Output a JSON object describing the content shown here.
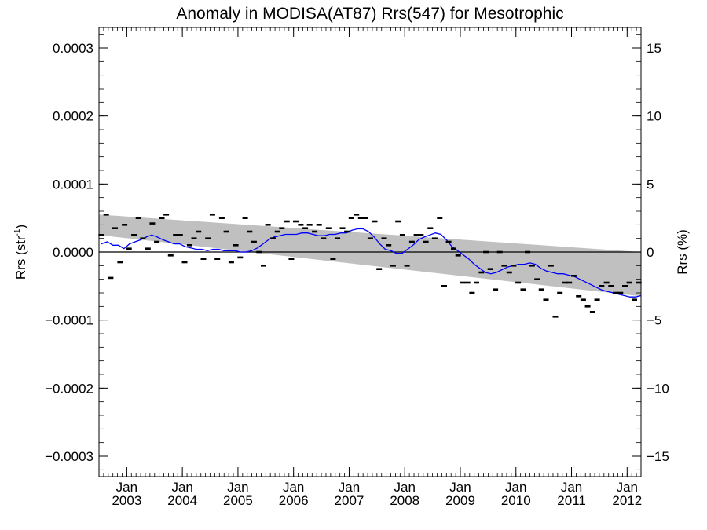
{
  "chart_data": {
    "type": "scatter",
    "title": "Anomaly in MODISA(AT87) Rrs(547) for Mesotrophic",
    "ylabel": "Rrs (str",
    "ylabel_sup": "-1",
    "ylabel_tail": ")",
    "y2label": "Rrs (%)",
    "xlim": [
      2002.5,
      2012.25
    ],
    "ylim": [
      -0.00033,
      0.00033
    ],
    "y2lim": [
      -16.5,
      16.5
    ],
    "grid": false,
    "y_ticks": [
      {
        "value": 0.0003,
        "label": "0.0003"
      },
      {
        "value": 0.0002,
        "label": "0.0002"
      },
      {
        "value": 0.0001,
        "label": "0.0001"
      },
      {
        "value": 0.0,
        "label": "0.0000"
      },
      {
        "value": -0.0001,
        "label": "−0.0001"
      },
      {
        "value": -0.0002,
        "label": "−0.0002"
      },
      {
        "value": -0.0003,
        "label": "−0.0003"
      }
    ],
    "y2_ticks": [
      {
        "value": 15,
        "label": "15"
      },
      {
        "value": 10,
        "label": "10"
      },
      {
        "value": 5,
        "label": "5"
      },
      {
        "value": 0,
        "label": "0"
      },
      {
        "value": -5,
        "label": "−5"
      },
      {
        "value": -10,
        "label": "−10"
      },
      {
        "value": -15,
        "label": "−15"
      }
    ],
    "x_ticks": [
      {
        "value": 2003.0,
        "label_top": "Jan",
        "label_bottom": "2003"
      },
      {
        "value": 2004.0,
        "label_top": "Jan",
        "label_bottom": "2004"
      },
      {
        "value": 2005.0,
        "label_top": "Jan",
        "label_bottom": "2005"
      },
      {
        "value": 2006.0,
        "label_top": "Jan",
        "label_bottom": "2006"
      },
      {
        "value": 2007.0,
        "label_top": "Jan",
        "label_bottom": "2007"
      },
      {
        "value": 2008.0,
        "label_top": "Jan",
        "label_bottom": "2008"
      },
      {
        "value": 2009.0,
        "label_top": "Jan",
        "label_bottom": "2009"
      },
      {
        "value": 2010.0,
        "label_top": "Jan",
        "label_bottom": "2010"
      },
      {
        "value": 2011.0,
        "label_top": "Jan",
        "label_bottom": "2011"
      },
      {
        "value": 2012.0,
        "label_top": "Jan",
        "label_bottom": "2012"
      }
    ],
    "band": {
      "start": {
        "x": 2002.5,
        "upper": 5.5e-05,
        "lower": 2.5e-05
      },
      "end": {
        "x": 2012.25,
        "upper": 0.0,
        "lower": -6.5e-05
      },
      "color": "#c0c0c0"
    },
    "zero_line": 0.0,
    "colors": {
      "points": "#000000",
      "trend": "#0000ff",
      "band": "#c0c0c0"
    },
    "points": {
      "x": [
        2002.54,
        2002.63,
        2002.71,
        2002.79,
        2002.88,
        2002.96,
        2003.04,
        2003.13,
        2003.21,
        2003.29,
        2003.38,
        2003.46,
        2003.54,
        2003.63,
        2003.71,
        2003.79,
        2003.88,
        2003.96,
        2004.04,
        2004.13,
        2004.21,
        2004.29,
        2004.38,
        2004.46,
        2004.54,
        2004.63,
        2004.71,
        2004.79,
        2004.88,
        2004.96,
        2005.04,
        2005.13,
        2005.21,
        2005.29,
        2005.38,
        2005.46,
        2005.54,
        2005.63,
        2005.71,
        2005.79,
        2005.88,
        2005.96,
        2006.04,
        2006.13,
        2006.21,
        2006.29,
        2006.38,
        2006.46,
        2006.54,
        2006.63,
        2006.71,
        2006.79,
        2006.88,
        2006.96,
        2007.04,
        2007.13,
        2007.21,
        2007.29,
        2007.38,
        2007.46,
        2007.54,
        2007.63,
        2007.71,
        2007.79,
        2007.88,
        2007.96,
        2008.04,
        2008.13,
        2008.21,
        2008.29,
        2008.38,
        2008.46,
        2008.54,
        2008.63,
        2008.71,
        2008.79,
        2008.88,
        2008.96,
        2009.04,
        2009.13,
        2009.21,
        2009.29,
        2009.38,
        2009.46,
        2009.54,
        2009.63,
        2009.71,
        2009.79,
        2009.88,
        2009.96,
        2010.04,
        2010.13,
        2010.21,
        2010.29,
        2010.38,
        2010.46,
        2010.54,
        2010.63,
        2010.71,
        2010.79,
        2010.88,
        2010.96,
        2011.04,
        2011.13,
        2011.21,
        2011.29,
        2011.38,
        2011.46,
        2011.54,
        2011.63,
        2011.71,
        2011.79,
        2011.88,
        2011.96,
        2012.04,
        2012.13,
        2012.21
      ],
      "y": [
        2.5e-05,
        5.5e-05,
        -3.8e-05,
        3.5e-05,
        -1.5e-05,
        4e-05,
        5e-06,
        2.5e-05,
        5e-05,
        2e-05,
        5e-06,
        4.2e-05,
        1.5e-05,
        5e-05,
        5.5e-05,
        -5e-06,
        2.5e-05,
        2.5e-05,
        -1.5e-05,
        1e-05,
        2e-05,
        3e-05,
        -1e-05,
        2e-05,
        5.5e-05,
        -1e-05,
        5e-05,
        3e-05,
        -1.5e-05,
        1e-05,
        -8e-06,
        5e-05,
        3e-05,
        1.5e-05,
        0.0,
        -2e-05,
        4e-05,
        2e-05,
        3e-05,
        3.5e-05,
        4.5e-05,
        -1e-05,
        4.5e-05,
        4e-05,
        3.5e-05,
        4e-05,
        3e-05,
        4e-05,
        2e-05,
        3.5e-05,
        -1e-05,
        2e-05,
        3.5e-05,
        3e-05,
        5e-05,
        5.5e-05,
        5e-05,
        5e-05,
        2e-05,
        4.5e-05,
        -2.5e-05,
        2e-05,
        1e-05,
        -2e-05,
        4.5e-05,
        2.5e-05,
        -2e-05,
        1.5e-05,
        2.5e-05,
        2.5e-05,
        1.5e-05,
        3.5e-05,
        2e-05,
        5e-05,
        -5e-05,
        1.5e-05,
        5e-06,
        -5e-06,
        -4.5e-05,
        -4.5e-05,
        -6e-05,
        -4.5e-05,
        -3e-05,
        0.0,
        -2.5e-05,
        -5.5e-05,
        0.0,
        -2e-05,
        -3e-05,
        -2e-05,
        -4.5e-05,
        -5.5e-05,
        0.0,
        -2e-05,
        -4e-05,
        -5.5e-05,
        -7e-05,
        -2e-05,
        -9.5e-05,
        -6e-05,
        -4.5e-05,
        -4.5e-05,
        -3.5e-05,
        -6.5e-05,
        -7e-05,
        -8e-05,
        -8.8e-05,
        -7e-05,
        -5e-05,
        -4.5e-05,
        -5e-05,
        -6e-05,
        -6e-05,
        -5e-05,
        -4.5e-05,
        -7e-05,
        -4.5e-05
      ]
    },
    "trend": {
      "x": [
        2002.54,
        2002.65,
        2002.75,
        2002.85,
        2002.95,
        2003.05,
        2003.15,
        2003.25,
        2003.35,
        2003.45,
        2003.55,
        2003.65,
        2003.75,
        2003.85,
        2003.95,
        2004.05,
        2004.15,
        2004.25,
        2004.35,
        2004.45,
        2004.55,
        2004.65,
        2004.75,
        2004.85,
        2004.95,
        2005.05,
        2005.15,
        2005.25,
        2005.35,
        2005.45,
        2005.55,
        2005.65,
        2005.75,
        2005.85,
        2005.95,
        2006.05,
        2006.15,
        2006.25,
        2006.35,
        2006.45,
        2006.55,
        2006.65,
        2006.75,
        2006.85,
        2006.95,
        2007.05,
        2007.15,
        2007.25,
        2007.35,
        2007.45,
        2007.55,
        2007.65,
        2007.75,
        2007.85,
        2007.95,
        2008.05,
        2008.15,
        2008.25,
        2008.35,
        2008.45,
        2008.55,
        2008.65,
        2008.75,
        2008.85,
        2008.95,
        2009.05,
        2009.15,
        2009.25,
        2009.35,
        2009.45,
        2009.55,
        2009.65,
        2009.75,
        2009.85,
        2009.95,
        2010.05,
        2010.15,
        2010.25,
        2010.35,
        2010.45,
        2010.55,
        2010.65,
        2010.75,
        2010.85,
        2010.95,
        2011.05,
        2011.15,
        2011.25,
        2011.35,
        2011.45,
        2011.55,
        2011.65,
        2011.75,
        2011.85,
        2011.95,
        2012.05,
        2012.15,
        2012.25
      ],
      "y": [
        1.2e-05,
        1.5e-05,
        1e-05,
        1e-05,
        5e-06,
        1.2e-05,
        1.5e-05,
        1.8e-05,
        2.2e-05,
        2.5e-05,
        2.2e-05,
        1.8e-05,
        1.5e-05,
        1.2e-05,
        1.2e-05,
        8e-06,
        6e-06,
        4e-06,
        4e-06,
        2e-06,
        4e-06,
        4e-06,
        2e-06,
        2e-06,
        2e-06,
        0.0,
        0.0,
        2e-06,
        6e-06,
        1.2e-05,
        1.8e-05,
        2.2e-05,
        2.4e-05,
        2.6e-05,
        2.6e-05,
        2.6e-05,
        2.8e-05,
        2.8e-05,
        2.6e-05,
        2.4e-05,
        2.4e-05,
        2.6e-05,
        2.6e-05,
        2.8e-05,
        2.8e-05,
        3.2e-05,
        3.4e-05,
        3.4e-05,
        3e-05,
        2.2e-05,
        1.2e-05,
        4e-06,
        2e-06,
        -2e-06,
        -2e-06,
        4e-06,
        1e-05,
        1.8e-05,
        2.2e-05,
        2.5e-05,
        2.8e-05,
        2.6e-05,
        1.8e-05,
        8e-06,
        2e-06,
        -4e-06,
        -1e-05,
        -1.8e-05,
        -2.4e-05,
        -3e-05,
        -3.2e-05,
        -3e-05,
        -2.6e-05,
        -2.2e-05,
        -2e-05,
        -1.8e-05,
        -1.8e-05,
        -1.6e-05,
        -1.8e-05,
        -2.4e-05,
        -2.8e-05,
        -3e-05,
        -3.2e-05,
        -3.2e-05,
        -3.4e-05,
        -3.6e-05,
        -4e-05,
        -4.4e-05,
        -4.8e-05,
        -5.2e-05,
        -5.6e-05,
        -5.8e-05,
        -6e-05,
        -6.2e-05,
        -6.4e-05,
        -6.6e-05,
        -6.6e-05,
        -6.4e-05
      ]
    }
  }
}
